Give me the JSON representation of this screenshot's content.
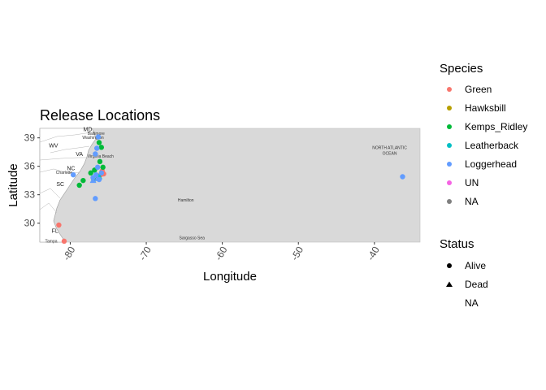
{
  "chart_data": {
    "type": "scatter",
    "title": "Release Locations",
    "xlabel": "Longitude",
    "ylabel": "Latitude",
    "xlim": [
      -84,
      -34
    ],
    "ylim": [
      28,
      40
    ],
    "x_ticks": [
      -80,
      -70,
      -60,
      -50,
      -40
    ],
    "y_ticks": [
      30,
      33,
      36,
      39
    ],
    "background": "map",
    "map_labels": [
      {
        "text": "WV",
        "lon": -82.2,
        "lat": 38.0
      },
      {
        "text": "MD",
        "lon": -77.7,
        "lat": 39.7
      },
      {
        "text": "VA",
        "lon": -78.8,
        "lat": 37.1
      },
      {
        "text": "NC",
        "lon": -79.9,
        "lat": 35.6
      },
      {
        "text": "SC",
        "lon": -81.3,
        "lat": 33.9
      },
      {
        "text": "FL",
        "lon": -82.0,
        "lat": 29.0
      }
    ],
    "map_places": [
      {
        "text": "Baltimore",
        "lon": -76.6,
        "lat": 39.3
      },
      {
        "text": "Washington",
        "lon": -77.0,
        "lat": 38.9
      },
      {
        "text": "Virginia Beach",
        "lon": -76.0,
        "lat": 36.9
      },
      {
        "text": "Charlotte",
        "lon": -80.8,
        "lat": 35.2
      },
      {
        "text": "Hamilton",
        "lon": -64.8,
        "lat": 32.3
      },
      {
        "text": "Sargasso Sea",
        "lon": -64.0,
        "lat": 28.3
      },
      {
        "text": "NORTH ATLANTIC",
        "lon": -38.0,
        "lat": 37.8
      },
      {
        "text": "OCEAN",
        "lon": -38.0,
        "lat": 37.2
      },
      {
        "text": "Tampa",
        "lon": -82.5,
        "lat": 27.95
      }
    ],
    "series": [
      {
        "name": "Green",
        "color": "#F8766D",
        "points": [
          {
            "x": -75.8,
            "y": 35.5,
            "status": "Alive"
          },
          {
            "x": -76.0,
            "y": 35.1,
            "status": "Alive"
          },
          {
            "x": -75.6,
            "y": 35.2,
            "status": "Alive"
          },
          {
            "x": -81.5,
            "y": 29.8,
            "status": "Alive"
          },
          {
            "x": -80.8,
            "y": 28.1,
            "status": "Alive"
          }
        ]
      },
      {
        "name": "Kemps_Ridley",
        "color": "#00BA38",
        "points": [
          {
            "x": -76.2,
            "y": 38.5,
            "status": "Alive"
          },
          {
            "x": -75.9,
            "y": 38.0,
            "status": "Alive"
          },
          {
            "x": -76.1,
            "y": 36.5,
            "status": "Alive"
          },
          {
            "x": -75.7,
            "y": 35.9,
            "status": "Alive"
          },
          {
            "x": -76.8,
            "y": 35.6,
            "status": "Alive"
          },
          {
            "x": -77.3,
            "y": 35.3,
            "status": "Alive"
          },
          {
            "x": -76.3,
            "y": 34.9,
            "status": "Alive"
          },
          {
            "x": -78.3,
            "y": 34.5,
            "status": "Alive"
          },
          {
            "x": -78.8,
            "y": 34.0,
            "status": "Alive"
          },
          {
            "x": -76.9,
            "y": 34.6,
            "status": "Alive"
          }
        ]
      },
      {
        "name": "Leatherback",
        "color": "#00BFC4",
        "points": [
          {
            "x": -76.2,
            "y": 34.9,
            "status": "Dead"
          }
        ]
      },
      {
        "name": "Loggerhead",
        "color": "#619CFF",
        "points": [
          {
            "x": -76.3,
            "y": 39.1,
            "status": "Alive"
          },
          {
            "x": -76.5,
            "y": 37.9,
            "status": "Alive"
          },
          {
            "x": -76.7,
            "y": 37.3,
            "status": "Alive"
          },
          {
            "x": -76.4,
            "y": 35.9,
            "status": "Alive"
          },
          {
            "x": -75.9,
            "y": 35.3,
            "status": "Alive"
          },
          {
            "x": -76.6,
            "y": 35.1,
            "status": "Alive"
          },
          {
            "x": -76.2,
            "y": 34.6,
            "status": "Alive"
          },
          {
            "x": -77.0,
            "y": 34.8,
            "status": "Alive"
          },
          {
            "x": -79.6,
            "y": 35.1,
            "status": "Alive"
          },
          {
            "x": -76.7,
            "y": 32.6,
            "status": "Alive"
          },
          {
            "x": -36.3,
            "y": 34.9,
            "status": "Alive"
          },
          {
            "x": -76.4,
            "y": 34.7,
            "status": "Dead"
          },
          {
            "x": -77.0,
            "y": 34.5,
            "status": "Dead"
          }
        ]
      }
    ],
    "legends": {
      "species": {
        "title": "Species",
        "items": [
          {
            "label": "Green",
            "color": "#F8766D"
          },
          {
            "label": "Hawksbill",
            "color": "#B79F00"
          },
          {
            "label": "Kemps_Ridley",
            "color": "#00BA38"
          },
          {
            "label": "Leatherback",
            "color": "#00BFC4"
          },
          {
            "label": "Loggerhead",
            "color": "#619CFF"
          },
          {
            "label": "UN",
            "color": "#F564E3"
          },
          {
            "label": "NA",
            "color": "#7F7F7F"
          }
        ]
      },
      "status": {
        "title": "Status",
        "items": [
          {
            "label": "Alive",
            "shape": "circle"
          },
          {
            "label": "Dead",
            "shape": "triangle"
          },
          {
            "label": "NA",
            "shape": "none"
          }
        ]
      }
    }
  }
}
